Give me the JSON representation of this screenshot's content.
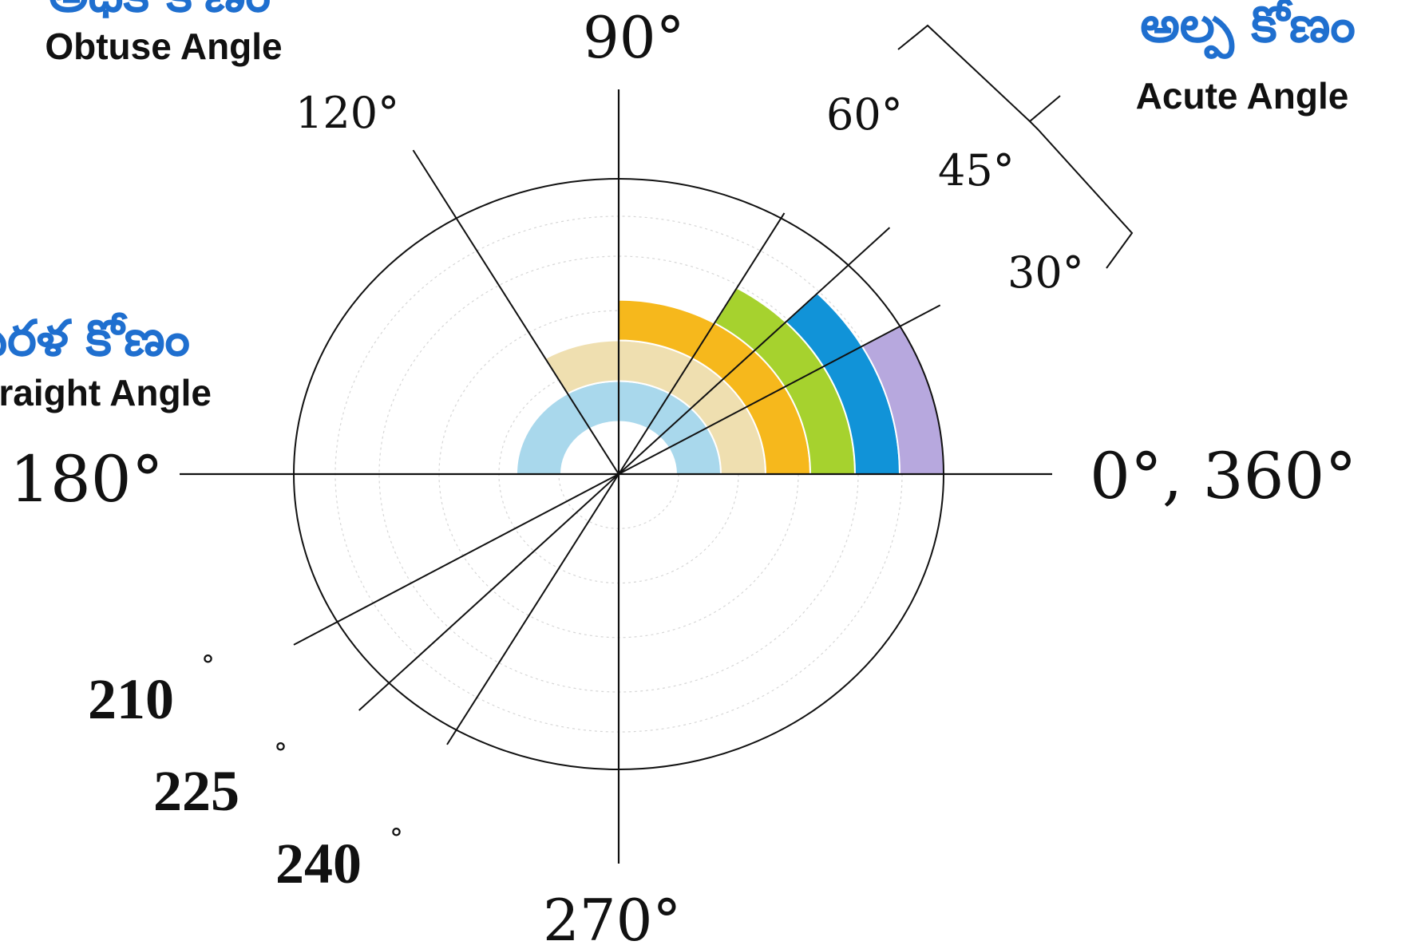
{
  "colors": {
    "background": "#ffffff",
    "ink": "#111111",
    "grid": "#d6d6d6",
    "telugu_blue": "#1f6fcf"
  },
  "axes": {
    "right": "0°, 360°",
    "top": "90°",
    "left": "180°",
    "bottom": "270°"
  },
  "angle_lines": [
    {
      "deg": 30,
      "label": "30°"
    },
    {
      "deg": 45,
      "label": "45°"
    },
    {
      "deg": 60,
      "label": "60°"
    },
    {
      "deg": 120,
      "label": "120°"
    },
    {
      "deg": 210,
      "label": "210",
      "degree_mark": "°"
    },
    {
      "deg": 225,
      "label": "225",
      "degree_mark": "°"
    },
    {
      "deg": 240,
      "label": "240",
      "degree_mark": "°"
    }
  ],
  "bands": [
    {
      "angle": 180,
      "color": "#a9d8ec"
    },
    {
      "angle": 120,
      "color": "#efdfb0"
    },
    {
      "angle": 90,
      "color": "#f6b81c"
    },
    {
      "angle": 60,
      "color": "#a6d22e"
    },
    {
      "angle": 45,
      "color": "#1193d8"
    },
    {
      "angle": 30,
      "color": "#b7a8de"
    }
  ],
  "labels": {
    "acute_telugu": "అల్ప కోణం",
    "acute_english": "Acute Angle",
    "obtuse_telugu": "అధిక కోణం",
    "obtuse_english": "Obtuse Angle",
    "straight_telugu": "సరళ కోణం",
    "straight_english": "Straight Angle"
  }
}
